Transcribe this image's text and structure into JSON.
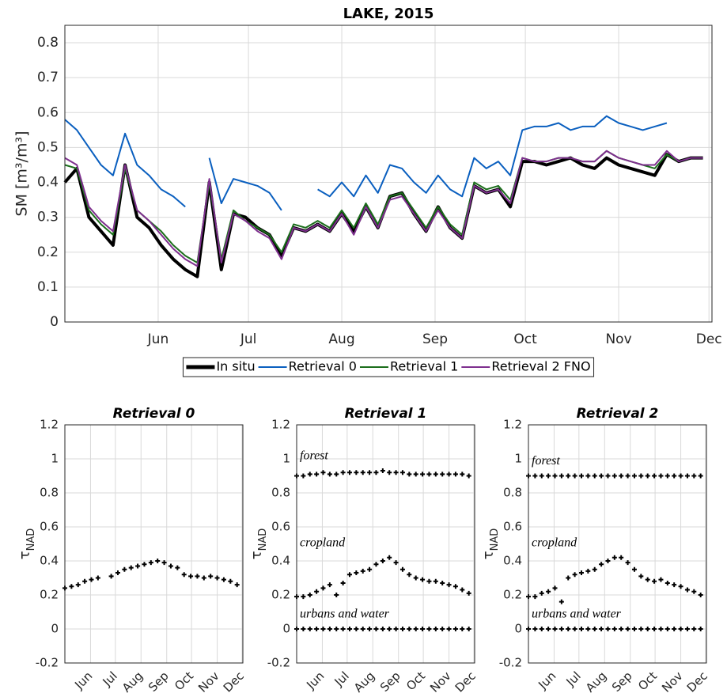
{
  "chart_data": [
    {
      "type": "line",
      "title": "LAKE, 2015",
      "ylabel": "SM [m³/m³]",
      "x": [
        0,
        4,
        8,
        12,
        16,
        20,
        24,
        28,
        32,
        36,
        40,
        44,
        48,
        52,
        56,
        60,
        64,
        68,
        72,
        76,
        80,
        84,
        88,
        92,
        96,
        100,
        104,
        108,
        112,
        116,
        120,
        124,
        128,
        132,
        136,
        140,
        144,
        148,
        152,
        156,
        160,
        164,
        168,
        172,
        176,
        180,
        184,
        188,
        192,
        196,
        200,
        204,
        208,
        212
      ],
      "xlim": [
        0,
        215
      ],
      "xticks": [
        {
          "value": 31,
          "label": "Jun"
        },
        {
          "value": 61,
          "label": "Jul"
        },
        {
          "value": 92,
          "label": "Aug"
        },
        {
          "value": 123,
          "label": "Sep"
        },
        {
          "value": 153,
          "label": "Oct"
        },
        {
          "value": 184,
          "label": "Nov"
        },
        {
          "value": 214,
          "label": "Dec"
        }
      ],
      "ylim": [
        0,
        0.85
      ],
      "yticks": [
        0,
        0.1,
        0.2,
        0.3,
        0.4,
        0.5,
        0.6,
        0.7,
        0.8
      ],
      "grid": true,
      "legend": "outside bottom",
      "series": [
        {
          "name": "In situ",
          "color": "#000000",
          "values": [
            0.4,
            0.44,
            0.3,
            0.26,
            0.22,
            0.45,
            0.3,
            0.27,
            0.22,
            0.18,
            0.15,
            0.13,
            0.4,
            0.15,
            0.31,
            0.3,
            0.27,
            0.25,
            0.19,
            0.27,
            0.26,
            0.28,
            0.26,
            0.31,
            0.26,
            0.33,
            0.27,
            0.36,
            0.37,
            0.31,
            0.26,
            0.33,
            0.27,
            0.24,
            0.39,
            0.37,
            0.38,
            0.33,
            0.46,
            0.46,
            0.45,
            0.46,
            0.47,
            0.45,
            0.44,
            0.47,
            0.45,
            0.44,
            0.43,
            0.42,
            0.48,
            0.46,
            0.47,
            0.47
          ]
        },
        {
          "name": "Retrieval 0",
          "color": "#0a5fbf",
          "values": [
            0.58,
            0.55,
            0.5,
            0.45,
            0.42,
            0.54,
            0.45,
            0.42,
            0.38,
            0.36,
            0.33,
            null,
            0.47,
            0.34,
            0.41,
            0.4,
            0.39,
            0.37,
            0.32,
            null,
            null,
            0.38,
            0.36,
            0.4,
            0.36,
            0.42,
            0.37,
            0.45,
            0.44,
            0.4,
            0.37,
            0.42,
            0.38,
            0.36,
            0.47,
            0.44,
            0.46,
            0.42,
            0.55,
            0.56,
            0.56,
            0.57,
            0.55,
            0.56,
            0.56,
            0.59,
            0.57,
            0.56,
            0.55,
            0.56,
            0.57,
            null,
            null,
            null
          ]
        },
        {
          "name": "Retrieval 1",
          "color": "#1b6e1b",
          "values": [
            0.45,
            0.44,
            0.32,
            0.28,
            0.25,
            0.44,
            0.32,
            0.29,
            0.26,
            0.22,
            0.19,
            0.17,
            0.4,
            0.18,
            0.32,
            0.29,
            0.27,
            0.25,
            0.2,
            0.28,
            0.27,
            0.29,
            0.27,
            0.32,
            0.27,
            0.34,
            0.28,
            0.36,
            0.37,
            0.32,
            0.27,
            0.33,
            0.28,
            0.25,
            0.4,
            0.38,
            0.39,
            0.35,
            0.47,
            0.46,
            0.46,
            0.47,
            0.47,
            0.46,
            0.46,
            0.49,
            0.47,
            0.46,
            0.45,
            0.44,
            0.48,
            0.46,
            0.47,
            0.47
          ]
        },
        {
          "name": "Retrieval 2 FNO",
          "color": "#7e2f8e",
          "values": [
            0.47,
            0.45,
            0.33,
            0.29,
            0.26,
            0.45,
            0.32,
            0.29,
            0.25,
            0.21,
            0.18,
            0.16,
            0.41,
            0.17,
            0.31,
            0.29,
            0.26,
            0.24,
            0.18,
            0.27,
            0.26,
            0.28,
            0.26,
            0.31,
            0.25,
            0.33,
            0.27,
            0.35,
            0.36,
            0.31,
            0.26,
            0.32,
            0.27,
            0.24,
            0.39,
            0.37,
            0.38,
            0.34,
            0.47,
            0.46,
            0.46,
            0.47,
            0.47,
            0.46,
            0.46,
            0.49,
            0.47,
            0.46,
            0.45,
            0.45,
            0.49,
            0.46,
            0.47,
            0.47
          ]
        }
      ]
    },
    {
      "type": "scatter",
      "title": "Retrieval 0",
      "ylabel": "τNAD",
      "x": [
        0,
        8,
        16,
        24,
        32,
        40,
        48,
        56,
        64,
        72,
        80,
        88,
        96,
        104,
        112,
        120,
        128,
        136,
        144,
        152,
        160,
        168,
        176,
        184,
        192,
        200,
        208
      ],
      "xlim": [
        0,
        215
      ],
      "xticks": [
        {
          "value": 31,
          "label": "Jun"
        },
        {
          "value": 61,
          "label": "Jul"
        },
        {
          "value": 92,
          "label": "Aug"
        },
        {
          "value": 123,
          "label": "Sep"
        },
        {
          "value": 153,
          "label": "Oct"
        },
        {
          "value": 184,
          "label": "Nov"
        },
        {
          "value": 214,
          "label": "Dec"
        }
      ],
      "ylim": [
        -0.2,
        1.2
      ],
      "yticks": [
        -0.2,
        0,
        0.2,
        0.4,
        0.6,
        0.8,
        1,
        1.2
      ],
      "grid": true,
      "series": [
        {
          "color": "#000000",
          "values": [
            0.24,
            0.25,
            0.26,
            0.28,
            0.29,
            0.3,
            null,
            0.31,
            0.33,
            0.35,
            0.36,
            0.37,
            0.38,
            0.39,
            0.4,
            0.39,
            0.37,
            0.36,
            0.32,
            0.31,
            0.31,
            0.3,
            0.31,
            0.3,
            0.29,
            0.28,
            0.26
          ]
        }
      ]
    },
    {
      "type": "scatter",
      "title": "Retrieval 1",
      "ylabel": "τNAD",
      "x": [
        0,
        8,
        16,
        24,
        32,
        40,
        48,
        56,
        64,
        72,
        80,
        88,
        96,
        104,
        112,
        120,
        128,
        136,
        144,
        152,
        160,
        168,
        176,
        184,
        192,
        200,
        208
      ],
      "xlim": [
        0,
        215
      ],
      "xticks": [
        {
          "value": 31,
          "label": "Jun"
        },
        {
          "value": 61,
          "label": "Jul"
        },
        {
          "value": 92,
          "label": "Aug"
        },
        {
          "value": 123,
          "label": "Sep"
        },
        {
          "value": 153,
          "label": "Oct"
        },
        {
          "value": 184,
          "label": "Nov"
        },
        {
          "value": 214,
          "label": "Dec"
        }
      ],
      "ylim": [
        -0.2,
        1.2
      ],
      "yticks": [
        -0.2,
        0,
        0.2,
        0.4,
        0.6,
        0.8,
        1,
        1.2
      ],
      "grid": true,
      "series": [
        {
          "name": "forest",
          "color": "#000000",
          "values": [
            0.9,
            0.9,
            0.91,
            0.91,
            0.92,
            0.91,
            0.91,
            0.92,
            0.92,
            0.92,
            0.92,
            0.92,
            0.92,
            0.93,
            0.92,
            0.92,
            0.92,
            0.91,
            0.91,
            0.91,
            0.91,
            0.91,
            0.91,
            0.91,
            0.91,
            0.91,
            0.9
          ]
        },
        {
          "name": "cropland",
          "color": "#000000",
          "values": [
            0.19,
            0.19,
            0.2,
            0.22,
            0.24,
            0.26,
            0.2,
            0.27,
            0.32,
            0.33,
            0.34,
            0.35,
            0.38,
            0.4,
            0.42,
            0.39,
            0.35,
            0.32,
            0.3,
            0.29,
            0.28,
            0.28,
            0.27,
            0.26,
            0.25,
            0.23,
            0.21
          ]
        },
        {
          "name": "urbans and water",
          "color": "#000000",
          "values": [
            0,
            0,
            0,
            0,
            0,
            0,
            0,
            0,
            0,
            0,
            0,
            0,
            0,
            0,
            0,
            0,
            0,
            0,
            0,
            0,
            0,
            0,
            0,
            0,
            0,
            0,
            0
          ]
        }
      ]
    },
    {
      "type": "scatter",
      "title": "Retrieval 2",
      "ylabel": "τNAD",
      "x": [
        0,
        8,
        16,
        24,
        32,
        40,
        48,
        56,
        64,
        72,
        80,
        88,
        96,
        104,
        112,
        120,
        128,
        136,
        144,
        152,
        160,
        168,
        176,
        184,
        192,
        200,
        208
      ],
      "xlim": [
        0,
        215
      ],
      "xticks": [
        {
          "value": 31,
          "label": "Jun"
        },
        {
          "value": 61,
          "label": "Jul"
        },
        {
          "value": 92,
          "label": "Aug"
        },
        {
          "value": 123,
          "label": "Sep"
        },
        {
          "value": 153,
          "label": "Oct"
        },
        {
          "value": 184,
          "label": "Nov"
        },
        {
          "value": 214,
          "label": "Dec"
        }
      ],
      "ylim": [
        -0.2,
        1.2
      ],
      "yticks": [
        -0.2,
        0,
        0.2,
        0.4,
        0.6,
        0.8,
        1,
        1.2
      ],
      "grid": true,
      "series": [
        {
          "name": "forest",
          "color": "#000000",
          "values": [
            0.9,
            0.9,
            0.9,
            0.9,
            0.9,
            0.9,
            0.9,
            0.9,
            0.9,
            0.9,
            0.9,
            0.9,
            0.9,
            0.9,
            0.9,
            0.9,
            0.9,
            0.9,
            0.9,
            0.9,
            0.9,
            0.9,
            0.9,
            0.9,
            0.9,
            0.9,
            0.9
          ]
        },
        {
          "name": "cropland",
          "color": "#000000",
          "values": [
            0.19,
            0.19,
            0.21,
            0.22,
            0.24,
            0.16,
            0.3,
            0.32,
            0.33,
            0.34,
            0.35,
            0.38,
            0.4,
            0.42,
            0.42,
            0.39,
            0.35,
            0.31,
            0.29,
            0.28,
            0.29,
            0.27,
            0.26,
            0.25,
            0.23,
            0.22,
            0.2
          ]
        },
        {
          "name": "urbans and water",
          "color": "#000000",
          "values": [
            0,
            0,
            0,
            0,
            0,
            0,
            0,
            0,
            0,
            0,
            0,
            0,
            0,
            0,
            0,
            0,
            0,
            0,
            0,
            0,
            0,
            0,
            0,
            0,
            0,
            0,
            0
          ]
        }
      ]
    }
  ]
}
